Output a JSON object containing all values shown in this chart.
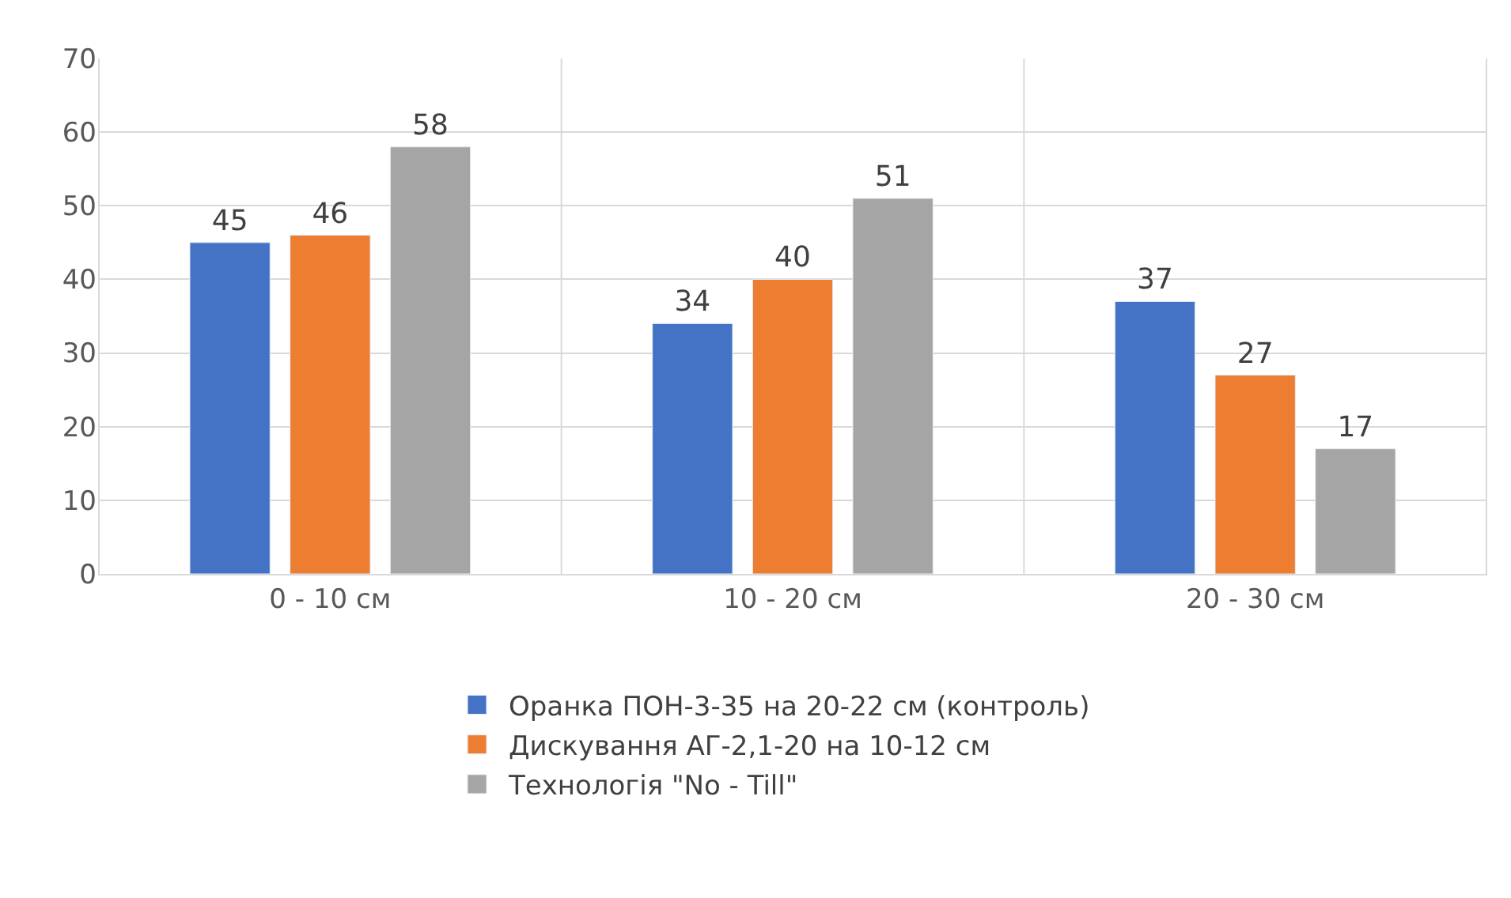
{
  "chart_data": {
    "type": "bar",
    "categories": [
      "0 - 10 см",
      "10 - 20 см",
      "20 - 30 см"
    ],
    "series": [
      {
        "name": "Оранка ПОН-3-35 на 20-22 см (контроль)",
        "color": "#4472c4",
        "values": [
          45,
          34,
          37
        ]
      },
      {
        "name": "Дискування АГ-2,1-20 на 10-12 см",
        "color": "#ed7d31",
        "values": [
          46,
          40,
          27
        ]
      },
      {
        "name": "Технологія \"No - Till\"",
        "color": "#a5a5a5",
        "values": [
          58,
          51,
          17
        ]
      }
    ],
    "ylim": [
      0,
      70
    ],
    "yticks": [
      0,
      10,
      20,
      30,
      40,
      50,
      60,
      70
    ],
    "grid": true,
    "legend": "bottom",
    "data_labels": true
  }
}
